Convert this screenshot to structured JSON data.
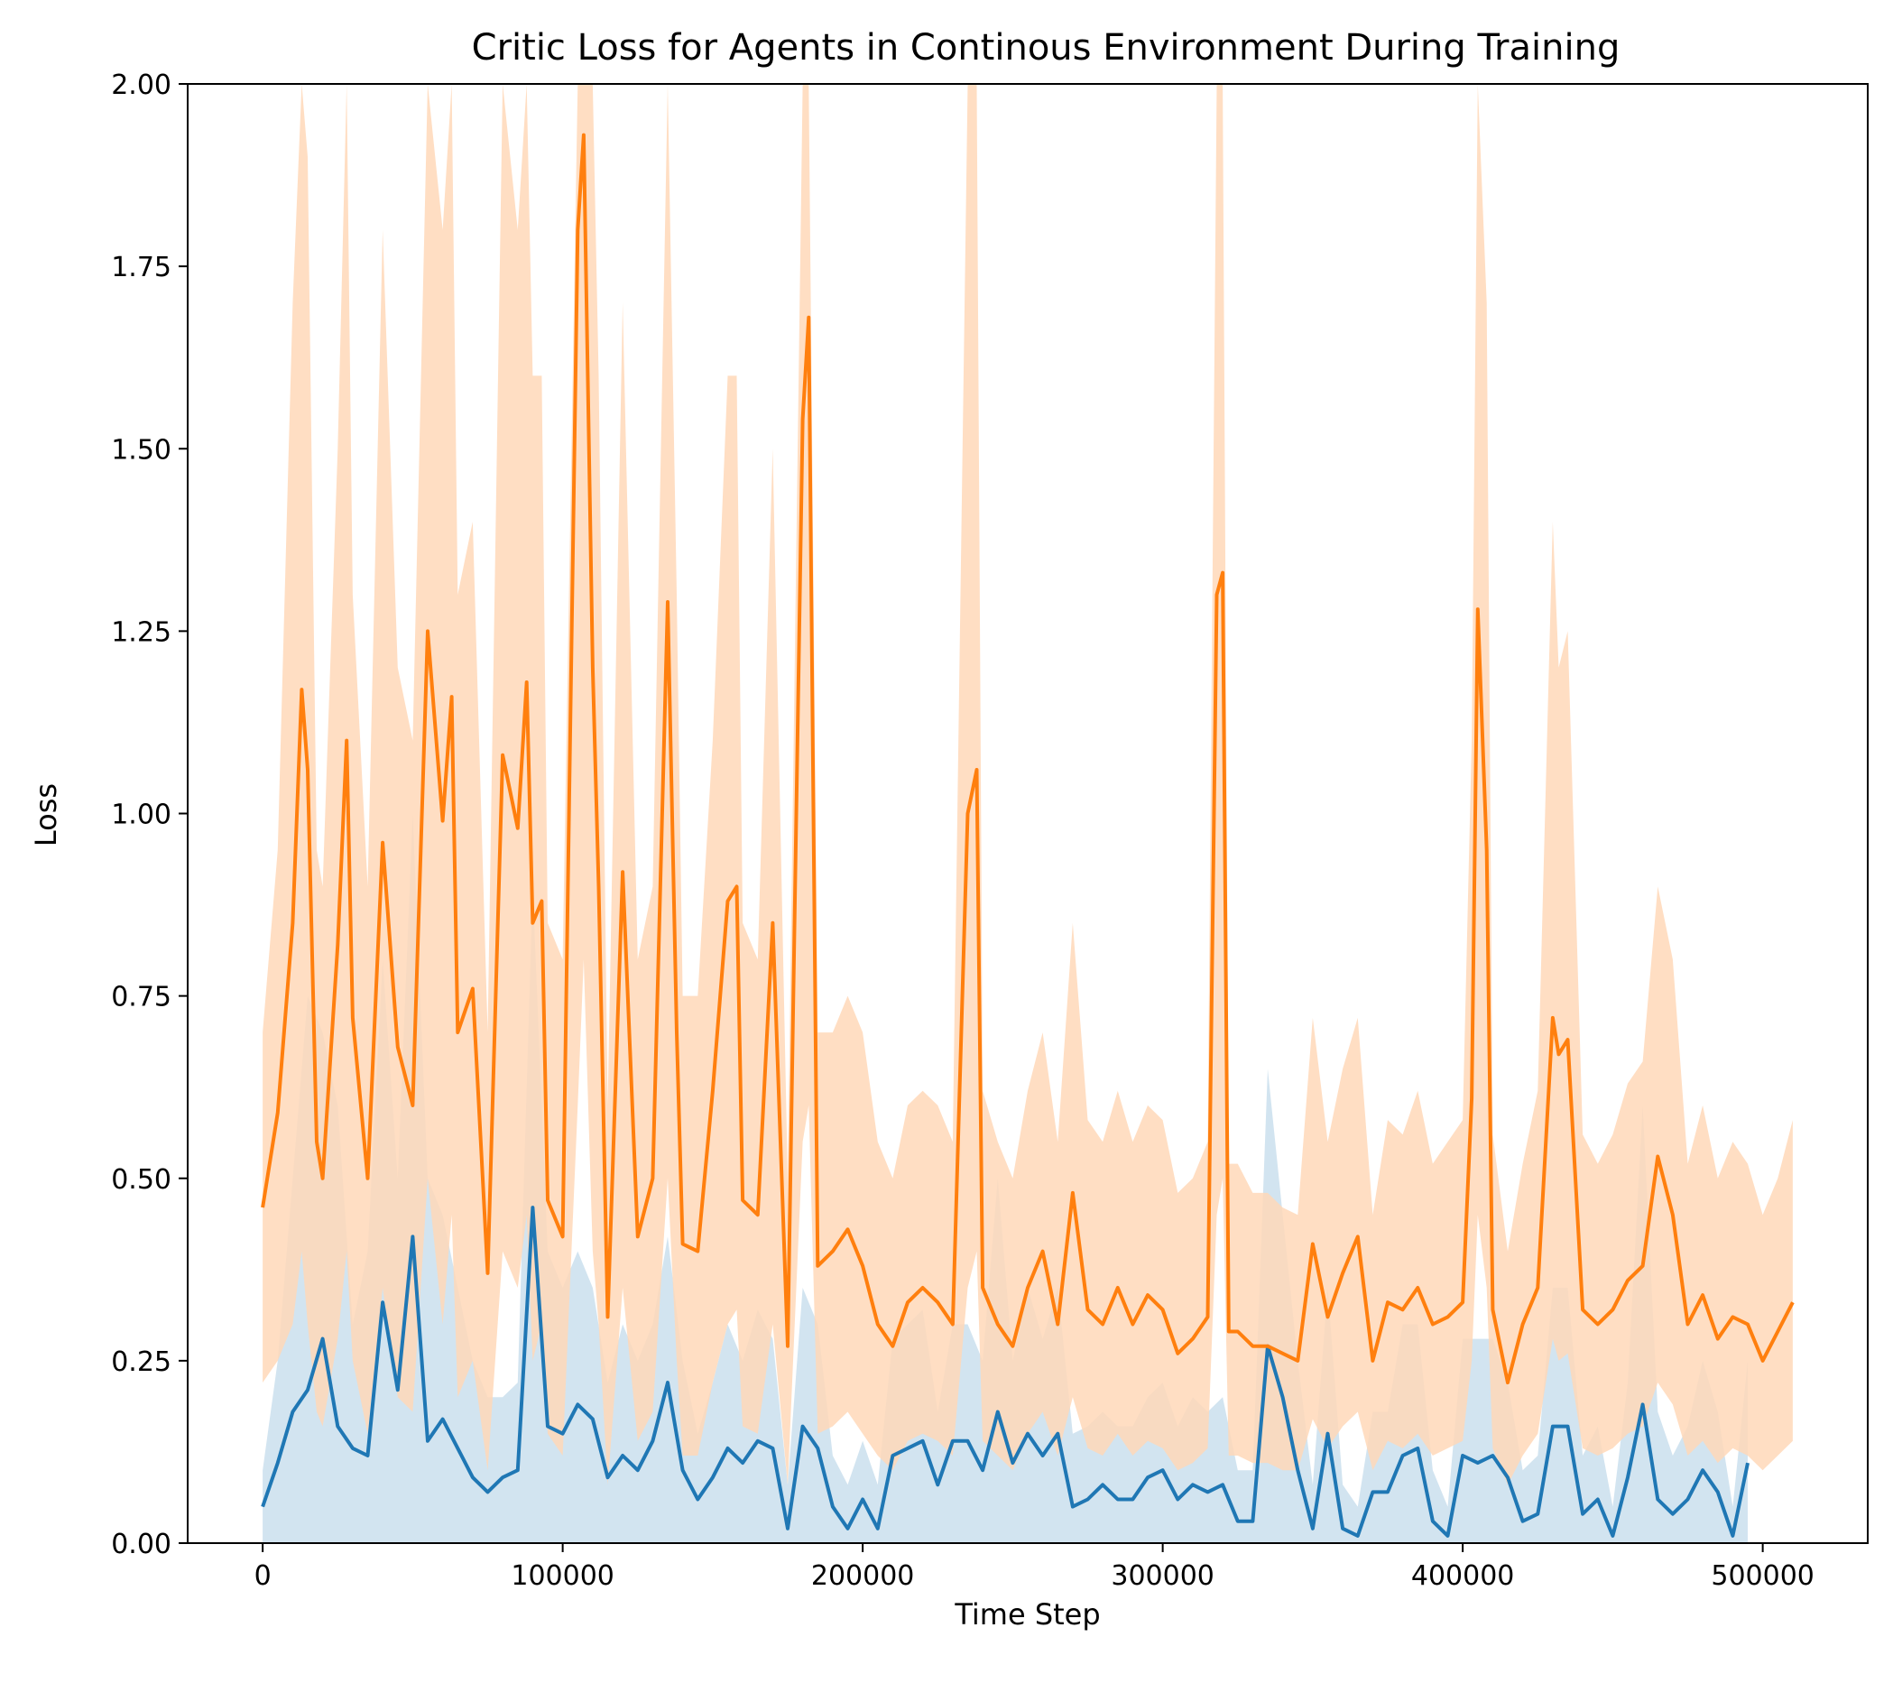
{
  "chart_data": {
    "type": "line",
    "title": "Critic Loss for Agents in Continous Environment During Training",
    "xlabel": "Time Step",
    "ylabel": "Loss",
    "xlim": [
      -25000,
      535000
    ],
    "ylim": [
      0,
      2.0
    ],
    "xticks": [
      0,
      100000,
      200000,
      300000,
      400000,
      500000
    ],
    "xtick_labels": [
      "0",
      "100000",
      "200000",
      "300000",
      "400000",
      "500000"
    ],
    "yticks": [
      0,
      0.25,
      0.5,
      0.75,
      1.0,
      1.25,
      1.5,
      1.75,
      2.0
    ],
    "ytick_labels": [
      "0.00",
      "0.25",
      "0.50",
      "0.75",
      "1.00",
      "1.25",
      "1.50",
      "1.75",
      "2.00"
    ],
    "grid": false,
    "series": [
      {
        "color": "#1f77b4",
        "band_color": "#1f77b4",
        "x": [
          0,
          5000,
          10000,
          15000,
          20000,
          25000,
          30000,
          35000,
          40000,
          45000,
          50000,
          55000,
          60000,
          65000,
          70000,
          75000,
          80000,
          85000,
          90000,
          95000,
          100000,
          105000,
          110000,
          115000,
          120000,
          125000,
          130000,
          135000,
          140000,
          145000,
          150000,
          155000,
          160000,
          165000,
          170000,
          175000,
          180000,
          185000,
          190000,
          195000,
          200000,
          205000,
          210000,
          215000,
          220000,
          225000,
          230000,
          235000,
          240000,
          245000,
          250000,
          255000,
          260000,
          265000,
          270000,
          275000,
          280000,
          285000,
          290000,
          295000,
          300000,
          305000,
          310000,
          315000,
          320000,
          325000,
          330000,
          335000,
          340000,
          345000,
          350000,
          355000,
          360000,
          365000,
          370000,
          375000,
          380000,
          385000,
          390000,
          395000,
          400000,
          405000,
          410000,
          415000,
          420000,
          425000,
          430000,
          435000,
          440000,
          445000,
          450000,
          455000,
          460000,
          465000,
          470000,
          475000,
          480000,
          485000,
          490000,
          495000
        ],
        "y": [
          0.05,
          0.11,
          0.18,
          0.21,
          0.28,
          0.16,
          0.13,
          0.12,
          0.33,
          0.21,
          0.42,
          0.14,
          0.17,
          0.13,
          0.09,
          0.07,
          0.09,
          0.1,
          0.46,
          0.16,
          0.15,
          0.19,
          0.17,
          0.09,
          0.12,
          0.1,
          0.14,
          0.22,
          0.1,
          0.06,
          0.09,
          0.13,
          0.11,
          0.14,
          0.13,
          0.02,
          0.16,
          0.13,
          0.05,
          0.02,
          0.06,
          0.02,
          0.12,
          0.13,
          0.14,
          0.08,
          0.14,
          0.14,
          0.1,
          0.18,
          0.11,
          0.15,
          0.12,
          0.15,
          0.05,
          0.06,
          0.08,
          0.06,
          0.06,
          0.09,
          0.1,
          0.06,
          0.08,
          0.07,
          0.08,
          0.03,
          0.03,
          0.27,
          0.2,
          0.1,
          0.02,
          0.15,
          0.02,
          0.01,
          0.07,
          0.07,
          0.12,
          0.13,
          0.03,
          0.01,
          0.12,
          0.11,
          0.12,
          0.09,
          0.03,
          0.04,
          0.16,
          0.16,
          0.04,
          0.06,
          0.01,
          0.09,
          0.19,
          0.06,
          0.04,
          0.06,
          0.1,
          0.07,
          0.01,
          0.11
        ],
        "y_low": [
          0.0,
          0.0,
          0.0,
          0.0,
          0.0,
          0.0,
          0.0,
          0.0,
          0.0,
          0.0,
          0.0,
          0.0,
          0.0,
          0.0,
          0.0,
          0.0,
          0.0,
          0.0,
          0.0,
          0.0,
          0.0,
          0.0,
          0.0,
          0.0,
          0.0,
          0.0,
          0.0,
          0.0,
          0.0,
          0.0,
          0.0,
          0.0,
          0.0,
          0.0,
          0.0,
          0.0,
          0.0,
          0.0,
          0.0,
          0.0,
          0.0,
          0.0,
          0.0,
          0.0,
          0.0,
          0.0,
          0.0,
          0.0,
          0.0,
          0.0,
          0.0,
          0.0,
          0.0,
          0.0,
          0.0,
          0.0,
          0.0,
          0.0,
          0.0,
          0.0,
          0.0,
          0.0,
          0.0,
          0.0,
          0.0,
          0.0,
          0.0,
          0.0,
          0.0,
          0.0,
          0.0,
          0.0,
          0.0,
          0.0,
          0.0,
          0.0,
          0.0,
          0.0,
          0.0,
          0.0,
          0.0,
          0.0,
          0.0,
          0.0,
          0.0,
          0.0,
          0.0,
          0.0,
          0.0,
          0.0,
          0.0,
          0.0,
          0.0,
          0.0,
          0.0,
          0.0,
          0.0,
          0.0,
          0.0,
          0.0
        ],
        "y_high": [
          0.1,
          0.25,
          0.5,
          0.75,
          0.7,
          0.6,
          0.3,
          0.4,
          0.8,
          0.5,
          1.0,
          0.5,
          0.45,
          0.35,
          0.25,
          0.2,
          0.2,
          0.22,
          0.9,
          0.4,
          0.35,
          0.4,
          0.35,
          0.22,
          0.3,
          0.25,
          0.3,
          0.42,
          0.25,
          0.15,
          0.22,
          0.3,
          0.25,
          0.32,
          0.28,
          0.08,
          0.35,
          0.3,
          0.12,
          0.08,
          0.14,
          0.08,
          0.28,
          0.3,
          0.32,
          0.18,
          0.3,
          0.3,
          0.25,
          0.5,
          0.25,
          0.35,
          0.28,
          0.35,
          0.15,
          0.16,
          0.18,
          0.16,
          0.16,
          0.2,
          0.22,
          0.16,
          0.2,
          0.18,
          0.2,
          0.1,
          0.1,
          0.65,
          0.45,
          0.25,
          0.08,
          0.35,
          0.08,
          0.05,
          0.18,
          0.18,
          0.3,
          0.3,
          0.1,
          0.05,
          0.28,
          0.28,
          0.28,
          0.22,
          0.1,
          0.12,
          0.35,
          0.35,
          0.12,
          0.16,
          0.05,
          0.22,
          0.6,
          0.18,
          0.12,
          0.16,
          0.25,
          0.18,
          0.05,
          0.25
        ]
      },
      {
        "color": "#ff7f0e",
        "band_color": "#ffd8b8",
        "x": [
          0,
          5000,
          10000,
          13000,
          15000,
          18000,
          20000,
          25000,
          28000,
          30000,
          35000,
          40000,
          45000,
          50000,
          55000,
          60000,
          63000,
          65000,
          70000,
          75000,
          80000,
          85000,
          88000,
          90000,
          93000,
          95000,
          100000,
          105000,
          107000,
          110000,
          112000,
          115000,
          120000,
          125000,
          130000,
          135000,
          138000,
          140000,
          145000,
          150000,
          155000,
          158000,
          160000,
          165000,
          170000,
          175000,
          180000,
          182000,
          185000,
          190000,
          195000,
          200000,
          205000,
          210000,
          215000,
          220000,
          225000,
          230000,
          235000,
          238000,
          240000,
          245000,
          250000,
          255000,
          260000,
          265000,
          270000,
          275000,
          280000,
          285000,
          290000,
          295000,
          300000,
          305000,
          310000,
          315000,
          318000,
          320000,
          322000,
          325000,
          330000,
          335000,
          340000,
          345000,
          350000,
          355000,
          360000,
          365000,
          370000,
          375000,
          380000,
          385000,
          390000,
          395000,
          400000,
          403000,
          405000,
          408000,
          410000,
          415000,
          420000,
          425000,
          430000,
          432000,
          435000,
          440000,
          445000,
          450000,
          455000,
          460000,
          465000,
          470000,
          475000,
          480000,
          485000,
          490000,
          495000,
          500000,
          505000,
          510000
        ],
        "y": [
          0.46,
          0.59,
          0.85,
          1.17,
          1.06,
          0.55,
          0.5,
          0.82,
          1.1,
          0.72,
          0.5,
          0.96,
          0.68,
          0.6,
          1.25,
          0.99,
          1.16,
          0.7,
          0.76,
          0.37,
          1.08,
          0.98,
          1.18,
          0.85,
          0.88,
          0.47,
          0.42,
          1.8,
          1.93,
          1.2,
          0.9,
          0.31,
          0.92,
          0.42,
          0.5,
          1.29,
          0.7,
          0.41,
          0.4,
          0.62,
          0.88,
          0.9,
          0.47,
          0.45,
          0.85,
          0.27,
          1.54,
          1.68,
          0.38,
          0.4,
          0.43,
          0.38,
          0.3,
          0.27,
          0.33,
          0.35,
          0.33,
          0.3,
          1.0,
          1.06,
          0.35,
          0.3,
          0.27,
          0.35,
          0.4,
          0.3,
          0.48,
          0.32,
          0.3,
          0.35,
          0.3,
          0.34,
          0.32,
          0.26,
          0.28,
          0.31,
          1.3,
          1.33,
          0.29,
          0.29,
          0.27,
          0.27,
          0.26,
          0.25,
          0.41,
          0.31,
          0.37,
          0.42,
          0.25,
          0.33,
          0.32,
          0.35,
          0.3,
          0.31,
          0.33,
          0.61,
          1.28,
          0.95,
          0.32,
          0.22,
          0.3,
          0.35,
          0.72,
          0.67,
          0.69,
          0.32,
          0.3,
          0.32,
          0.36,
          0.38,
          0.53,
          0.45,
          0.3,
          0.34,
          0.28,
          0.31,
          0.3,
          0.25,
          0.29,
          0.33
        ],
        "y_low": [
          0.22,
          0.25,
          0.3,
          0.4,
          0.3,
          0.18,
          0.16,
          0.28,
          0.4,
          0.25,
          0.15,
          0.35,
          0.2,
          0.18,
          0.5,
          0.3,
          0.45,
          0.2,
          0.25,
          0.1,
          0.4,
          0.35,
          0.45,
          0.25,
          0.3,
          0.15,
          0.12,
          0.6,
          0.8,
          0.4,
          0.3,
          0.08,
          0.35,
          0.14,
          0.18,
          0.5,
          0.25,
          0.12,
          0.12,
          0.22,
          0.3,
          0.32,
          0.16,
          0.15,
          0.3,
          0.08,
          0.55,
          0.6,
          0.15,
          0.16,
          0.18,
          0.15,
          0.12,
          0.1,
          0.14,
          0.15,
          0.14,
          0.12,
          0.35,
          0.4,
          0.14,
          0.12,
          0.1,
          0.15,
          0.18,
          0.12,
          0.2,
          0.13,
          0.12,
          0.15,
          0.12,
          0.14,
          0.13,
          0.1,
          0.11,
          0.13,
          0.45,
          0.5,
          0.12,
          0.12,
          0.11,
          0.11,
          0.1,
          0.1,
          0.17,
          0.13,
          0.16,
          0.18,
          0.1,
          0.14,
          0.13,
          0.15,
          0.12,
          0.13,
          0.14,
          0.25,
          0.45,
          0.35,
          0.13,
          0.08,
          0.12,
          0.15,
          0.28,
          0.25,
          0.26,
          0.13,
          0.12,
          0.13,
          0.15,
          0.16,
          0.22,
          0.19,
          0.12,
          0.14,
          0.11,
          0.13,
          0.12,
          0.1,
          0.12,
          0.14
        ],
        "y_high": [
          0.7,
          0.95,
          1.7,
          2.0,
          1.9,
          0.95,
          0.9,
          1.5,
          2.0,
          1.3,
          0.9,
          1.8,
          1.2,
          1.1,
          2.0,
          1.8,
          2.0,
          1.3,
          1.4,
          0.7,
          2.0,
          1.8,
          2.0,
          1.6,
          1.6,
          0.85,
          0.8,
          2.0,
          2.0,
          2.0,
          1.6,
          0.6,
          1.7,
          0.8,
          0.9,
          2.0,
          1.3,
          0.75,
          0.75,
          1.1,
          1.6,
          1.6,
          0.85,
          0.8,
          1.5,
          0.5,
          2.0,
          2.0,
          0.7,
          0.7,
          0.75,
          0.7,
          0.55,
          0.5,
          0.6,
          0.62,
          0.6,
          0.55,
          2.0,
          2.0,
          0.62,
          0.55,
          0.5,
          0.62,
          0.7,
          0.55,
          0.85,
          0.58,
          0.55,
          0.62,
          0.55,
          0.6,
          0.58,
          0.48,
          0.5,
          0.55,
          2.0,
          2.0,
          0.52,
          0.52,
          0.48,
          0.48,
          0.46,
          0.45,
          0.72,
          0.55,
          0.65,
          0.72,
          0.45,
          0.58,
          0.56,
          0.62,
          0.52,
          0.55,
          0.58,
          1.1,
          2.0,
          1.7,
          0.56,
          0.4,
          0.52,
          0.62,
          1.4,
          1.2,
          1.25,
          0.56,
          0.52,
          0.56,
          0.63,
          0.66,
          0.9,
          0.8,
          0.52,
          0.6,
          0.5,
          0.55,
          0.52,
          0.45,
          0.5,
          0.58
        ]
      }
    ]
  }
}
